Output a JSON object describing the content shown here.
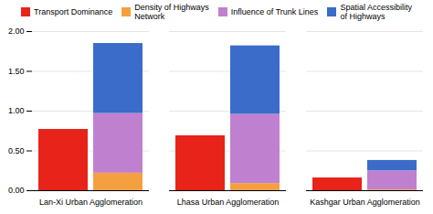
{
  "chart_data": {
    "type": "bar",
    "categories": [
      "Lan-Xi Urban Agglomeration",
      "Lhasa Urban Agglomeration",
      "Kashgar Urban Agglomeration"
    ],
    "series": [
      {
        "name": "Transport Dominance",
        "color": "#e8231a",
        "values": [
          0.77,
          0.69,
          0.16
        ]
      },
      {
        "name": "Density of Highways\nNetwork",
        "color": "#f5a040",
        "values": [
          0.22,
          0.09,
          0.01
        ]
      },
      {
        "name": "Influence of Trunk Lines",
        "color": "#c080d0",
        "values": [
          0.75,
          0.87,
          0.24
        ]
      },
      {
        "name": "Spatial Accessibility\nof Highways",
        "color": "#3b6cc9",
        "values": [
          0.88,
          0.86,
          0.13
        ]
      }
    ],
    "stacked": [
      [
        "Transport Dominance"
      ],
      [
        "Density of Highways\nNetwork",
        "Influence of Trunk Lines",
        "Spatial Accessibility\nof Highways"
      ]
    ],
    "ylim": [
      0,
      2.0
    ],
    "yticks": [
      {
        "value": 0.0,
        "label": "0.00"
      },
      {
        "value": 0.5,
        "label": "0.50"
      },
      {
        "value": 1.0,
        "label": "1.00"
      },
      {
        "value": 1.5,
        "label": "1.50"
      },
      {
        "value": 2.0,
        "label": "2.00"
      }
    ],
    "grid": true,
    "legend": "top"
  }
}
